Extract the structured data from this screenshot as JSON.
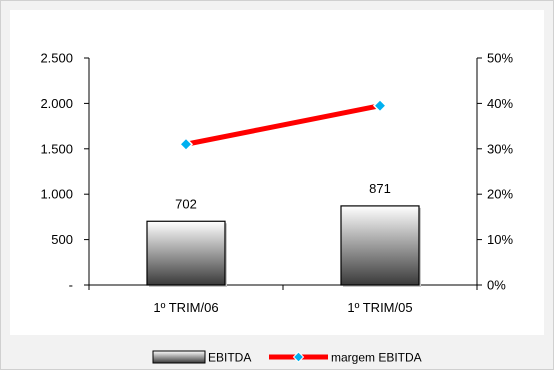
{
  "colors": {
    "background": "#f2f2f2",
    "plot_background": "#ffffff",
    "bar_gradient_top": "#ffffff",
    "bar_gradient_bottom": "#3a3a3a",
    "line_color": "#ff0000",
    "marker_fill": "#00b0f0",
    "axis_color": "#000000"
  },
  "chart_data": {
    "type": "bar",
    "categories": [
      "1º TRIM/06",
      "1º TRIM/05"
    ],
    "series": [
      {
        "name": "EBITDA",
        "type": "bar",
        "axis": "left",
        "values": [
          702,
          871
        ],
        "data_labels": [
          "702",
          "871"
        ]
      },
      {
        "name": "margem EBITDA",
        "type": "line",
        "axis": "right",
        "values": [
          0.31,
          0.395
        ]
      }
    ],
    "y_left": {
      "range": [
        0,
        2500
      ],
      "ticks": [
        0,
        500,
        1000,
        1500,
        2000,
        2500
      ],
      "tick_labels": [
        "-",
        "500",
        "1.000",
        "1.500",
        "2.000",
        "2.500"
      ]
    },
    "y_right": {
      "range": [
        0,
        0.5
      ],
      "ticks": [
        0,
        0.1,
        0.2,
        0.3,
        0.4,
        0.5
      ],
      "tick_labels": [
        "0%",
        "10%",
        "20%",
        "30%",
        "40%",
        "50%"
      ]
    },
    "grid": false,
    "legend": {
      "position": "bottom",
      "entries": [
        "EBITDA",
        "margem EBITDA"
      ]
    }
  }
}
